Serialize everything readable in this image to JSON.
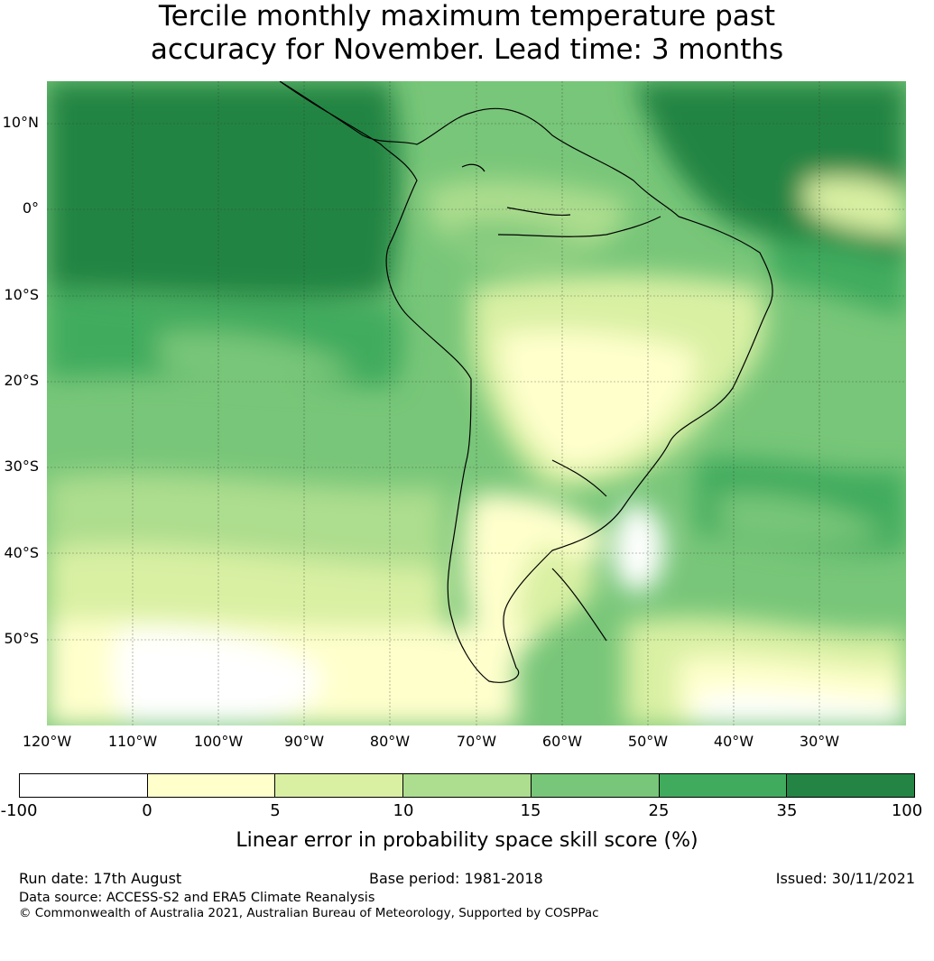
{
  "title": {
    "line1": "Tercile monthly maximum temperature past",
    "line2": "accuracy for November. Lead time: 3 months"
  },
  "map": {
    "lat_labels": [
      "10°N",
      "0°",
      "10°S",
      "20°S",
      "30°S",
      "40°S",
      "50°S"
    ],
    "lon_labels": [
      "120°W",
      "110°W",
      "100°W",
      "90°W",
      "80°W",
      "70°W",
      "60°W",
      "50°W",
      "40°W",
      "30°W"
    ],
    "extent": {
      "lon": [
        -120,
        -20
      ],
      "lat": [
        -60,
        15
      ]
    }
  },
  "colorbar": {
    "ticks": [
      "-100",
      "0",
      "5",
      "10",
      "15",
      "25",
      "35",
      "100"
    ],
    "colors": [
      "#ffffff",
      "#ffffcc",
      "#d9f0a3",
      "#addd8e",
      "#78c679",
      "#41ab5d",
      "#238443"
    ],
    "label": "Linear error in probability space skill score (%)"
  },
  "footer": {
    "run_date": "Run date: 17th August",
    "base_period": "Base period: 1981-2018",
    "issued": "Issued: 30/11/2021",
    "data_source": "Data source: ACCESS-S2 and ERA5 Climate Reanalysis",
    "copyright": "© Commonwealth of Australia 2021, Australian Bureau of Meteorology, Supported by COSPPac"
  }
}
